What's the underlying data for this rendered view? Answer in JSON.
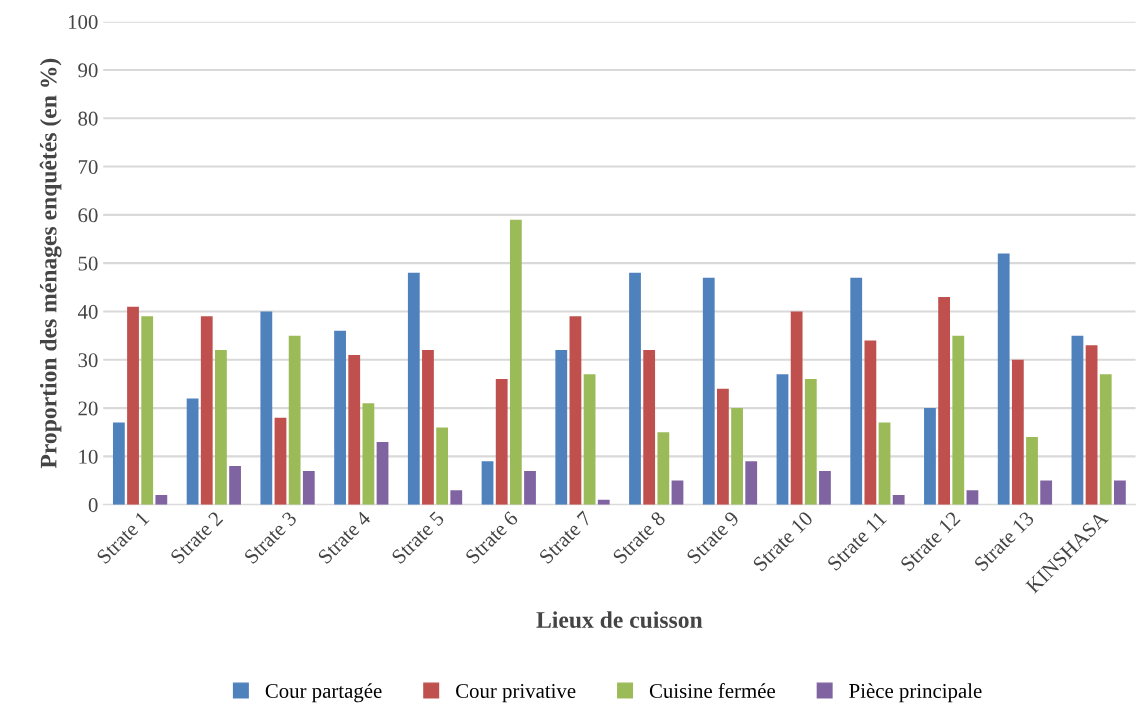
{
  "chart_data": {
    "type": "bar",
    "xlabel": "Lieux de cuisson",
    "ylabel": "Proportion des ménages enquêtés (en %)",
    "categories": [
      "Strate 1",
      "Strate 2",
      "Strate 3",
      "Strate 4",
      "Strate 5",
      "Strate 6",
      "Strate 7",
      "Strate 8",
      "Strate 9",
      "Strate 10",
      "Strate 11",
      "Strate 12",
      "Strate 13",
      "KINSHASA"
    ],
    "series": [
      {
        "name": "Cour partagée",
        "color": "#4f81bd",
        "values": [
          17,
          22,
          40,
          36,
          48,
          9,
          32,
          48,
          47,
          27,
          47,
          20,
          52,
          35
        ]
      },
      {
        "name": "Cour privative",
        "color": "#c0504d",
        "values": [
          41,
          39,
          18,
          31,
          32,
          26,
          39,
          32,
          24,
          40,
          34,
          43,
          30,
          33
        ]
      },
      {
        "name": "Cuisine fermée",
        "color": "#9bbb59",
        "values": [
          39,
          32,
          35,
          21,
          16,
          59,
          27,
          15,
          20,
          26,
          17,
          35,
          14,
          27
        ]
      },
      {
        "name": "Pièce principale",
        "color": "#8064a2",
        "values": [
          2,
          8,
          7,
          13,
          3,
          7,
          1,
          5,
          9,
          7,
          2,
          3,
          5,
          5
        ]
      }
    ],
    "ylim": [
      0,
      100
    ],
    "yticks": [
      0,
      10,
      20,
      30,
      40,
      50,
      60,
      70,
      80,
      90,
      100
    ],
    "grid": "y",
    "legend": "bottom"
  }
}
